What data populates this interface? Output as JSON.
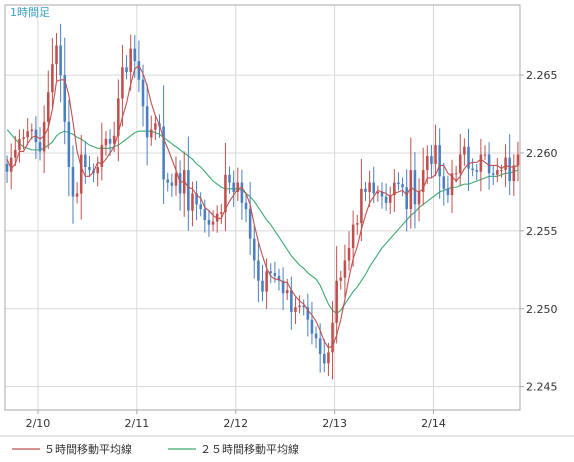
{
  "chart_data": {
    "type": "candlestick",
    "period_label": "1時間足",
    "x_tick_labels": [
      "2/10",
      "2/11",
      "2/12",
      "2/13",
      "2/14"
    ],
    "y_ticks": [
      2.245,
      2.25,
      2.255,
      2.26,
      2.265
    ],
    "y_tick_labels": [
      "2.245",
      "2.250",
      "2.255",
      "2.260",
      "2.265"
    ],
    "ylim": [
      2.2435,
      2.2695
    ],
    "grid": true,
    "legend": [
      {
        "name": "５時間移動平均線",
        "color": "#c0504d"
      },
      {
        "name": "２５時間移動平均線",
        "color": "#3aaa6e"
      }
    ],
    "colors": {
      "up": "#c0504d",
      "down": "#4a7fc1",
      "ma5": "#c0504d",
      "ma25": "#3aaa6e",
      "grid": "#d8d8d8",
      "frame": "#aaaaaa"
    },
    "day_start_index": [
      8,
      32,
      56,
      80,
      104
    ],
    "candle_count": 125,
    "close": [
      2.2588,
      2.2597,
      2.2602,
      2.2609,
      2.261,
      2.2614,
      2.2615,
      2.2607,
      2.2601,
      2.262,
      2.2639,
      2.2657,
      2.2669,
      2.265,
      2.262,
      2.2591,
      2.2572,
      2.2574,
      2.2599,
      2.2591,
      2.2589,
      2.2587,
      2.2591,
      2.2605,
      2.2609,
      2.2606,
      2.2611,
      2.2635,
      2.2655,
      2.2652,
      2.2667,
      2.2659,
      2.2647,
      2.263,
      2.261,
      2.2615,
      2.2619,
      2.2617,
      2.2583,
      2.2581,
      2.2579,
      2.2587,
      2.2574,
      2.2589,
      2.2563,
      2.2574,
      2.2567,
      2.2564,
      2.2557,
      2.2554,
      2.2556,
      2.2561,
      2.2562,
      2.2586,
      2.2581,
      2.2575,
      2.2581,
      2.2568,
      2.2564,
      2.2545,
      2.2531,
      2.2518,
      2.2511,
      2.2524,
      2.2523,
      2.2521,
      2.2518,
      2.251,
      2.2512,
      2.2498,
      2.2501,
      2.2502,
      2.2501,
      2.2493,
      2.2484,
      2.2481,
      2.2471,
      2.2465,
      2.2472,
      2.2491,
      2.2518,
      2.252,
      2.2531,
      2.2539,
      2.2554,
      2.2555,
      2.2577,
      2.2575,
      2.2581,
      2.2574,
      2.2575,
      2.2572,
      2.2568,
      2.2573,
      2.2581,
      2.258,
      2.2578,
      2.2564,
      2.2589,
      2.2567,
      2.2575,
      2.2589,
      2.2598,
      2.2593,
      2.2605,
      2.2585,
      2.2577,
      2.2573,
      2.2587,
      2.2587,
      2.2599,
      2.2604,
      2.259,
      2.2589,
      2.2588,
      2.2599,
      2.2599,
      2.2587,
      2.2586,
      2.2589,
      2.2589,
      2.2597,
      2.2582,
      2.2592,
      2.2599
    ],
    "ma5": [
      2.2596,
      2.259,
      2.2593,
      2.2601,
      2.2601,
      2.2606,
      2.261,
      2.2611,
      2.2609,
      2.2611,
      2.2616,
      2.2628,
      2.2646,
      2.2647,
      2.2647,
      2.2637,
      2.262,
      2.2601,
      2.2591,
      2.2585,
      2.2585,
      2.2588,
      2.2594,
      2.2593,
      2.2596,
      2.26,
      2.2604,
      2.2613,
      2.2623,
      2.2632,
      2.2644,
      2.2654,
      2.2656,
      2.2651,
      2.2643,
      2.2632,
      2.2624,
      2.2618,
      2.2609,
      2.2603,
      2.2596,
      2.2589,
      2.2581,
      2.2582,
      2.2578,
      2.2577,
      2.2573,
      2.2571,
      2.2565,
      2.2563,
      2.256,
      2.2558,
      2.2558,
      2.2564,
      2.2569,
      2.2573,
      2.2577,
      2.2578,
      2.2574,
      2.2567,
      2.2554,
      2.2543,
      2.2534,
      2.2526,
      2.2521,
      2.2519,
      2.2519,
      2.2517,
      2.2517,
      2.2512,
      2.2508,
      2.2505,
      2.2503,
      2.2499,
      2.2496,
      2.2492,
      2.2486,
      2.2479,
      2.2475,
      2.2476,
      2.2483,
      2.2493,
      2.2506,
      2.252,
      2.2532,
      2.254,
      2.2551,
      2.256,
      2.2568,
      2.2572,
      2.2576,
      2.2575,
      2.2574,
      2.2572,
      2.2574,
      2.2575,
      2.2576,
      2.2573,
      2.2578,
      2.2576,
      2.2575,
      2.2577,
      2.2584,
      2.2584,
      2.2586,
      2.2592,
      2.2592,
      2.2587,
      2.2585,
      2.2582,
      2.2585,
      2.259,
      2.2593,
      2.2594,
      2.2594,
      2.2596,
      2.2594,
      2.2592,
      2.2592,
      2.2592,
      2.259,
      2.2592,
      2.2591,
      2.2591,
      2.2592
    ],
    "ma25": [
      2.2615,
      2.2612,
      2.2609,
      2.2606,
      2.2604,
      2.2603,
      2.2602,
      2.2602,
      2.2602,
      2.2603,
      2.2605,
      2.2607,
      2.2611,
      2.2613,
      2.2614,
      2.2613,
      2.2612,
      2.261,
      2.2609,
      2.2607,
      2.2605,
      2.2604,
      2.2603,
      2.2603,
      2.2603,
      2.2603,
      2.2604,
      2.2605,
      2.2607,
      2.2609,
      2.2611,
      2.2613,
      2.2614,
      2.2614,
      2.2614,
      2.2614,
      2.2613,
      2.2612,
      2.261,
      2.2608,
      2.2606,
      2.2604,
      2.2602,
      2.26,
      2.2598,
      2.2596,
      2.2593,
      2.2591,
      2.2588,
      2.2585,
      2.2582,
      2.258,
      2.2578,
      2.2577,
      2.2577,
      2.2577,
      2.2577,
      2.2576,
      2.2574,
      2.2572,
      2.2569,
      2.2565,
      2.2561,
      2.2557,
      2.2554,
      2.255,
      2.2546,
      2.2542,
      2.2538,
      2.2534,
      2.2531,
      2.2528,
      2.2526,
      2.2523,
      2.2521,
      2.2519,
      2.2515,
      2.2509,
      2.2503,
      2.2499,
      2.2497,
      2.2499,
      2.2503,
      2.2507,
      2.2511,
      2.2514,
      2.2518,
      2.2522,
      2.2527,
      2.2531,
      2.2535,
      2.2539,
      2.2542,
      2.2545,
      2.2548,
      2.2551,
      2.2554,
      2.2557,
      2.256,
      2.2562,
      2.2565,
      2.2567,
      2.2569,
      2.2571,
      2.2573,
      2.2575,
      2.2576,
      2.2577,
      2.2578,
      2.2578,
      2.2579,
      2.258,
      2.258,
      2.2581,
      2.2582,
      2.2583,
      2.2584,
      2.2585,
      2.2585,
      2.2585,
      2.2586,
      2.2587,
      2.2587,
      2.2588,
      2.2589
    ]
  }
}
